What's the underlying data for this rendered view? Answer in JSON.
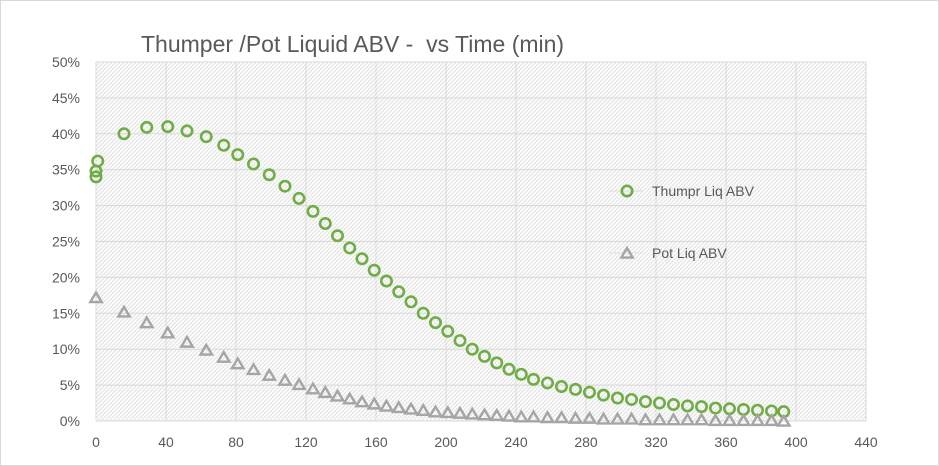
{
  "chart_data": {
    "type": "scatter",
    "title": "Thumper /Pot Liquid ABV -  vs Time (min)",
    "xlabel": "",
    "ylabel": "",
    "xlim": [
      0,
      440
    ],
    "ylim": [
      0,
      0.5
    ],
    "x_ticks": [
      0,
      40,
      80,
      120,
      160,
      200,
      240,
      280,
      320,
      360,
      400,
      440
    ],
    "y_ticks": [
      0,
      0.05,
      0.1,
      0.15,
      0.2,
      0.25,
      0.3,
      0.35,
      0.4,
      0.45,
      0.5
    ],
    "y_tick_labels": [
      "0%",
      "5%",
      "10%",
      "15%",
      "20%",
      "25%",
      "30%",
      "35%",
      "40%",
      "45%",
      "50%"
    ],
    "grid": true,
    "legend_position": "right",
    "series": [
      {
        "name": "Thumpr Liq ABV",
        "marker": "circle",
        "color": "#70ad47",
        "points": [
          [
            0,
            0.34
          ],
          [
            0,
            0.348
          ],
          [
            1,
            0.362
          ],
          [
            16,
            0.4
          ],
          [
            29,
            0.409
          ],
          [
            41,
            0.41
          ],
          [
            52,
            0.404
          ],
          [
            63,
            0.396
          ],
          [
            73,
            0.384
          ],
          [
            81,
            0.371
          ],
          [
            90,
            0.358
          ],
          [
            99,
            0.343
          ],
          [
            108,
            0.327
          ],
          [
            116,
            0.31
          ],
          [
            124,
            0.292
          ],
          [
            131,
            0.275
          ],
          [
            138,
            0.258
          ],
          [
            145,
            0.241
          ],
          [
            152,
            0.226
          ],
          [
            159,
            0.21
          ],
          [
            166,
            0.195
          ],
          [
            173,
            0.18
          ],
          [
            180,
            0.166
          ],
          [
            187,
            0.15
          ],
          [
            194,
            0.137
          ],
          [
            201,
            0.125
          ],
          [
            208,
            0.112
          ],
          [
            215,
            0.1
          ],
          [
            222,
            0.09
          ],
          [
            229,
            0.081
          ],
          [
            236,
            0.072
          ],
          [
            243,
            0.065
          ],
          [
            250,
            0.058
          ],
          [
            258,
            0.053
          ],
          [
            266,
            0.048
          ],
          [
            274,
            0.044
          ],
          [
            282,
            0.04
          ],
          [
            290,
            0.036
          ],
          [
            298,
            0.032
          ],
          [
            306,
            0.03
          ],
          [
            314,
            0.027
          ],
          [
            322,
            0.025
          ],
          [
            330,
            0.023
          ],
          [
            338,
            0.021
          ],
          [
            346,
            0.02
          ],
          [
            354,
            0.018
          ],
          [
            362,
            0.017
          ],
          [
            370,
            0.016
          ],
          [
            378,
            0.015
          ],
          [
            386,
            0.014
          ],
          [
            393,
            0.013
          ]
        ]
      },
      {
        "name": "Pot Liq ABV",
        "marker": "triangle",
        "color": "#a5a5a5",
        "points": [
          [
            0,
            0.172
          ],
          [
            16,
            0.152
          ],
          [
            29,
            0.137
          ],
          [
            41,
            0.123
          ],
          [
            52,
            0.11
          ],
          [
            63,
            0.099
          ],
          [
            73,
            0.089
          ],
          [
            81,
            0.08
          ],
          [
            90,
            0.072
          ],
          [
            99,
            0.064
          ],
          [
            108,
            0.057
          ],
          [
            116,
            0.051
          ],
          [
            124,
            0.045
          ],
          [
            131,
            0.04
          ],
          [
            138,
            0.035
          ],
          [
            145,
            0.031
          ],
          [
            152,
            0.027
          ],
          [
            159,
            0.024
          ],
          [
            166,
            0.021
          ],
          [
            173,
            0.019
          ],
          [
            180,
            0.017
          ],
          [
            187,
            0.015
          ],
          [
            194,
            0.013
          ],
          [
            201,
            0.012
          ],
          [
            208,
            0.011
          ],
          [
            215,
            0.01
          ],
          [
            222,
            0.009
          ],
          [
            229,
            0.008
          ],
          [
            236,
            0.007
          ],
          [
            243,
            0.006
          ],
          [
            250,
            0.006
          ],
          [
            258,
            0.005
          ],
          [
            266,
            0.005
          ],
          [
            274,
            0.004
          ],
          [
            282,
            0.004
          ],
          [
            290,
            0.003
          ],
          [
            298,
            0.003
          ],
          [
            306,
            0.003
          ],
          [
            314,
            0.002
          ],
          [
            322,
            0.002
          ],
          [
            330,
            0.002
          ],
          [
            338,
            0.002
          ],
          [
            346,
            0.002
          ],
          [
            354,
            0.001
          ],
          [
            362,
            0.001
          ],
          [
            370,
            0.001
          ],
          [
            378,
            0.001
          ],
          [
            386,
            0.001
          ],
          [
            393,
            0.0
          ]
        ]
      }
    ]
  }
}
